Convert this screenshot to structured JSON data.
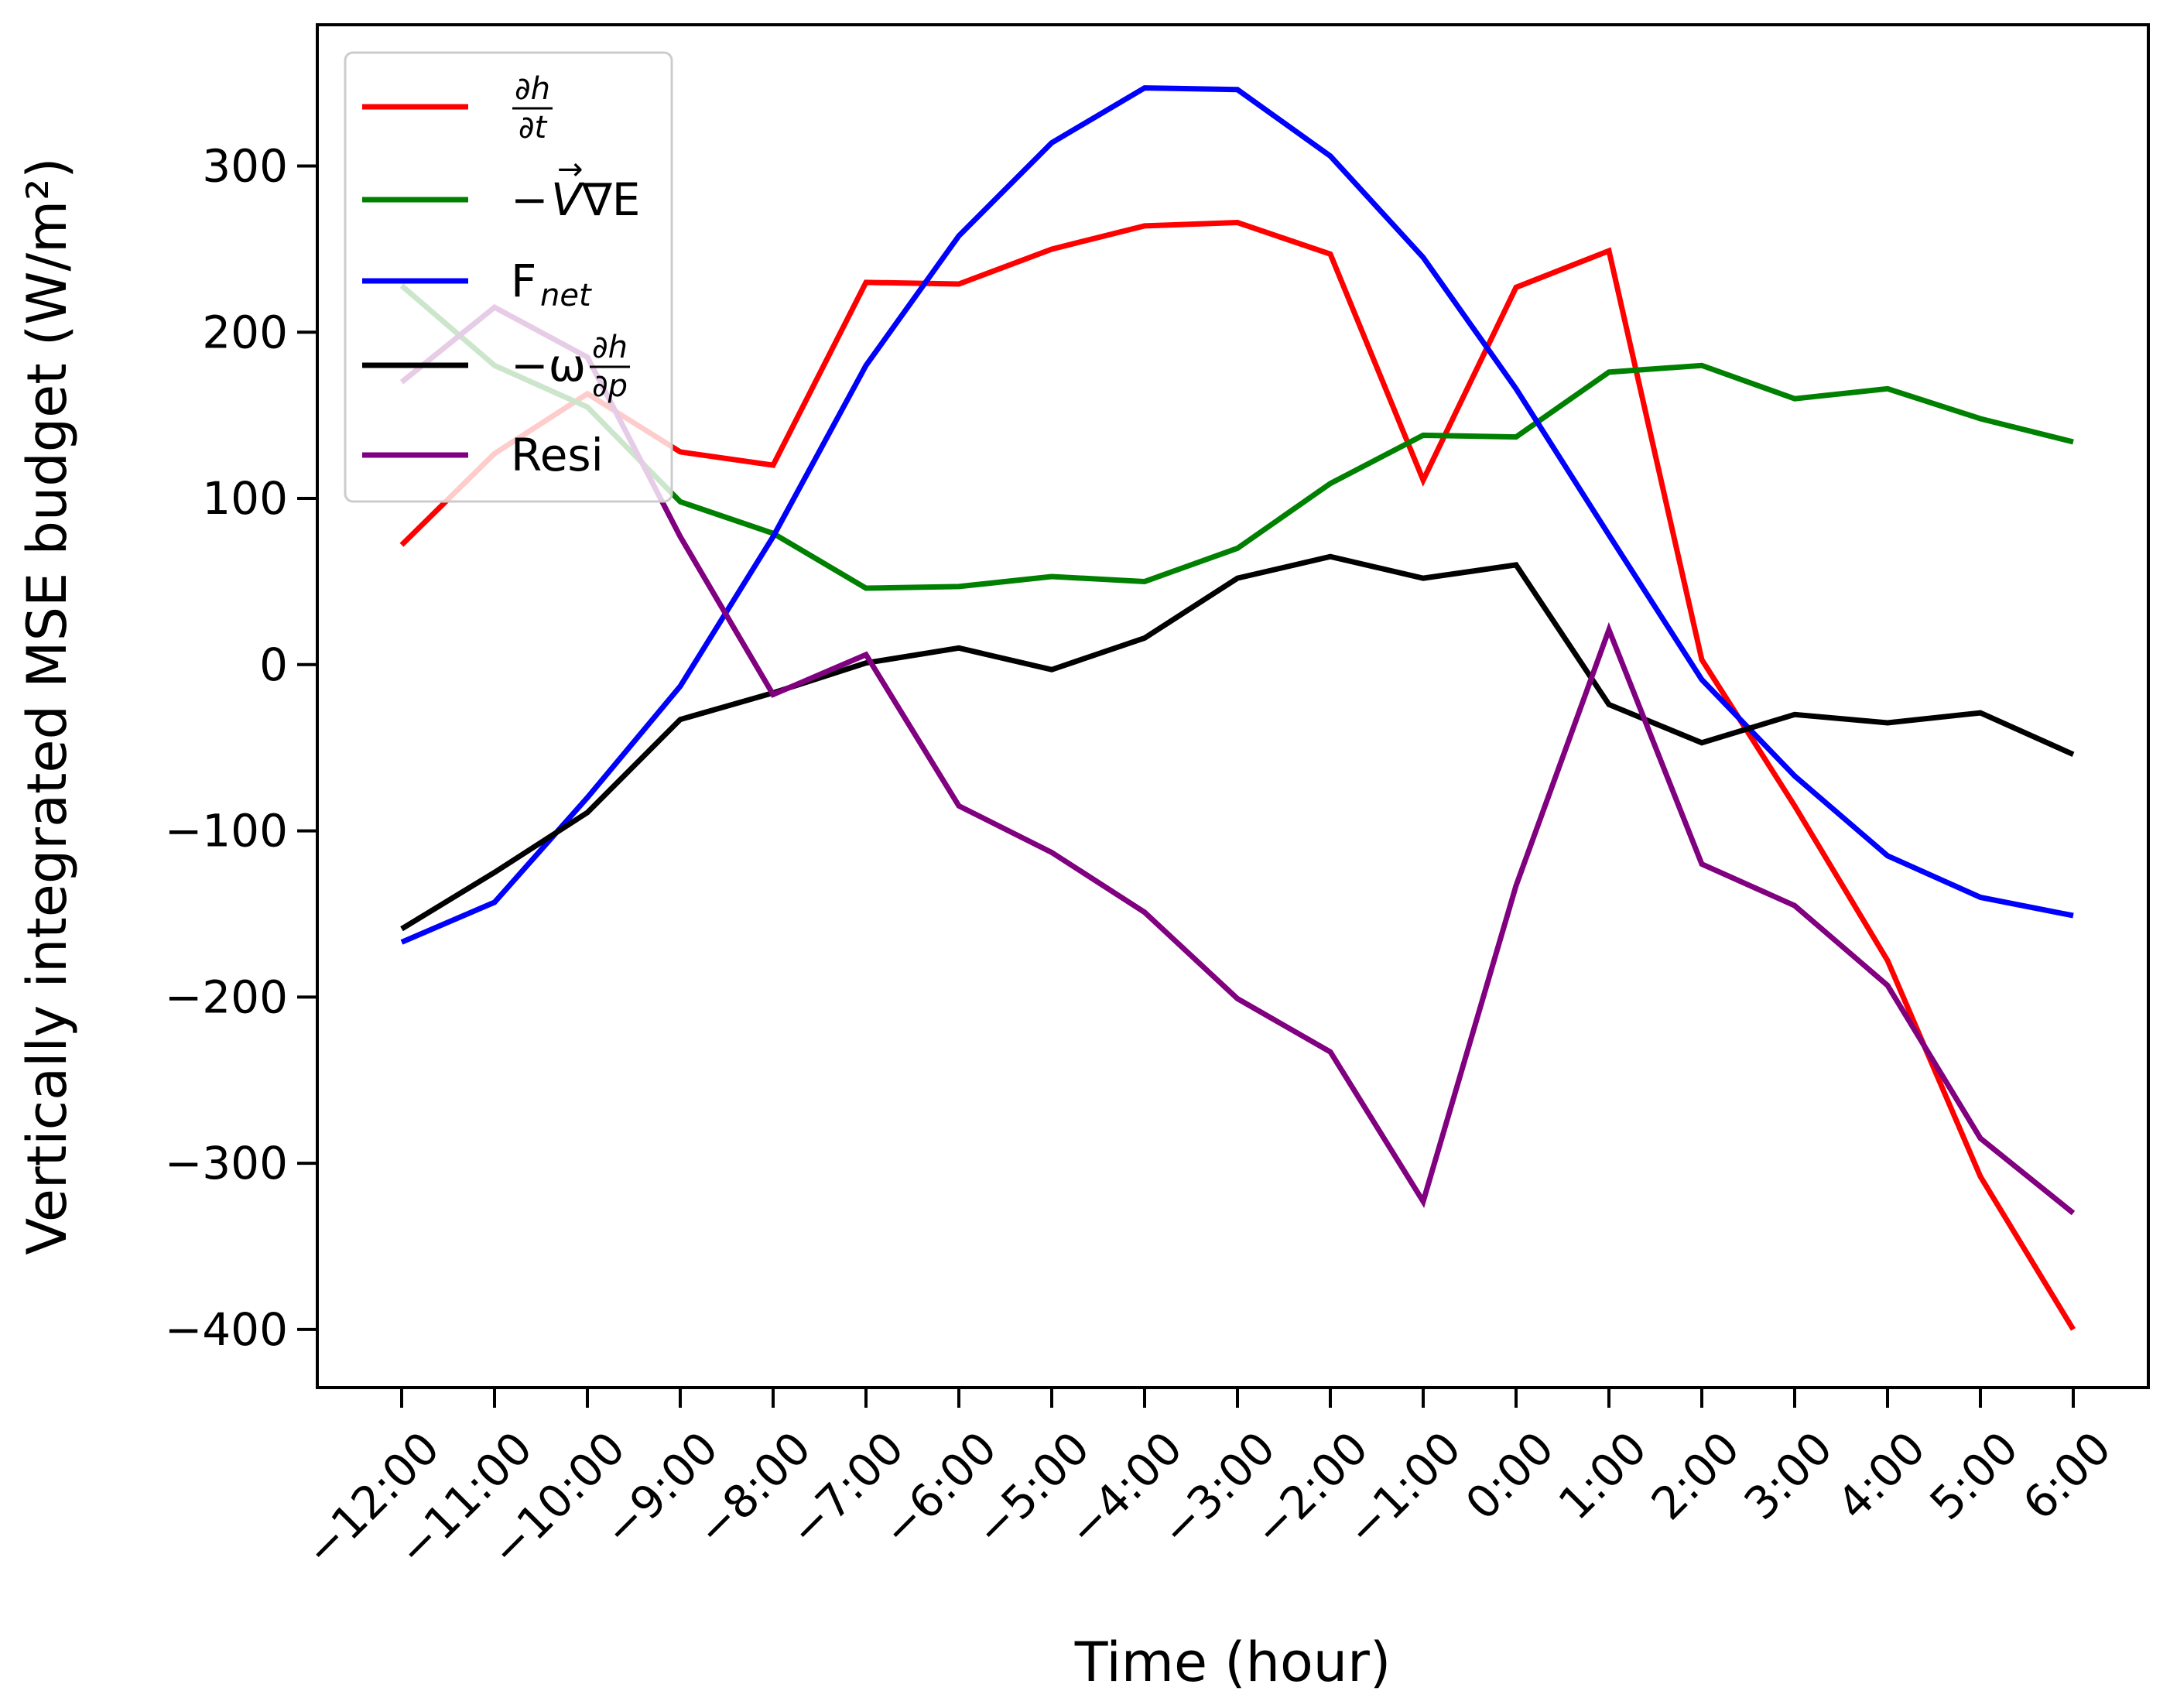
{
  "chart_data": {
    "type": "line",
    "title": "",
    "xlabel": "Time (hour)",
    "ylabel": "Vertically integrated MSE budget (W/m²)",
    "ylim": [
      -435,
      385
    ],
    "yticks": [
      -400,
      -300,
      -200,
      -100,
      0,
      100,
      200,
      300
    ],
    "ytick_labels": [
      "−400",
      "−300",
      "−200",
      "−100",
      "0",
      "100",
      "200",
      "300"
    ],
    "categories": [
      "−12:00",
      "−11:00",
      "−10:00",
      "−9:00",
      "−8:00",
      "−7:00",
      "−6:00",
      "−5:00",
      "−4:00",
      "−3:00",
      "−2:00",
      "−1:00",
      "0:00",
      "1:00",
      "2:00",
      "3:00",
      "4:00",
      "5:00",
      "6:00"
    ],
    "legend_position": "upper-left",
    "series": [
      {
        "name": "dh/dt",
        "color": "#ff0000",
        "legend": {
          "type": "frac",
          "num": "∂h",
          "den": "∂t",
          "prefix": ""
        },
        "values": [
          72,
          127,
          163,
          128,
          120,
          230,
          229,
          250,
          264,
          266,
          247,
          111,
          227,
          249,
          3,
          -85,
          -178,
          -308,
          -400
        ]
      },
      {
        "name": "-VgradE",
        "color": "#008000",
        "legend": {
          "type": "vec",
          "prefix": "−",
          "main": "V",
          "arrow": "→",
          "suffix": "∇E"
        },
        "values": [
          228,
          180,
          155,
          98,
          79,
          46,
          47,
          53,
          50,
          70,
          109,
          138,
          137,
          176,
          180,
          160,
          166,
          148,
          134
        ]
      },
      {
        "name": "Fnet",
        "color": "#0000ff",
        "legend": {
          "type": "sub",
          "main": "F",
          "sub": "net"
        },
        "values": [
          -167,
          -143,
          -80,
          -13,
          77,
          180,
          258,
          314,
          347,
          346,
          306,
          245,
          166,
          78,
          -9,
          -67,
          -115,
          -140,
          -151
        ]
      },
      {
        "name": "-omega dh/dp",
        "color": "#000000",
        "legend": {
          "type": "frac",
          "num": "∂h",
          "den": "∂p",
          "prefix": "−ω"
        },
        "values": [
          -159,
          -125,
          -89,
          -33,
          -17,
          1,
          10,
          -3,
          16,
          52,
          65,
          52,
          60,
          -24,
          -47,
          -30,
          -35,
          -29,
          -54
        ]
      },
      {
        "name": "Resi",
        "color": "#800080",
        "legend": {
          "type": "text",
          "text": "Resi"
        },
        "values": [
          170,
          215,
          185,
          77,
          -18,
          6,
          -85,
          -113,
          -149,
          -201,
          -233,
          -323,
          -133,
          21,
          -120,
          -145,
          -193,
          -285,
          -330
        ]
      }
    ]
  }
}
